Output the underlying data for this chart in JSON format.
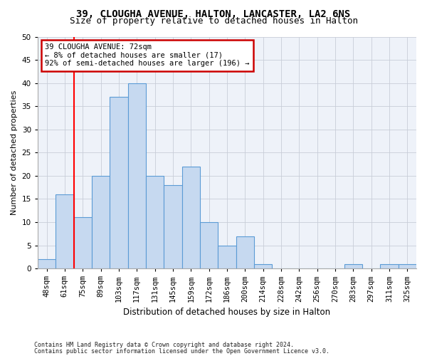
{
  "title1": "39, CLOUGHA AVENUE, HALTON, LANCASTER, LA2 6NS",
  "title2": "Size of property relative to detached houses in Halton",
  "xlabel": "Distribution of detached houses by size in Halton",
  "ylabel": "Number of detached properties",
  "categories": [
    "48sqm",
    "61sqm",
    "75sqm",
    "89sqm",
    "103sqm",
    "117sqm",
    "131sqm",
    "145sqm",
    "159sqm",
    "172sqm",
    "186sqm",
    "200sqm",
    "214sqm",
    "228sqm",
    "242sqm",
    "256sqm",
    "270sqm",
    "283sqm",
    "297sqm",
    "311sqm",
    "325sqm"
  ],
  "values": [
    2,
    16,
    11,
    20,
    37,
    40,
    20,
    18,
    22,
    10,
    5,
    7,
    1,
    0,
    0,
    0,
    0,
    1,
    0,
    1,
    1
  ],
  "bar_color": "#c6d9f0",
  "bar_edge_color": "#5b9bd5",
  "red_line_x": 1.5,
  "annotation_title": "39 CLOUGHA AVENUE: 72sqm",
  "annotation_line1": "← 8% of detached houses are smaller (17)",
  "annotation_line2": "92% of semi-detached houses are larger (196) →",
  "annotation_box_color": "#ffffff",
  "annotation_box_edge": "#cc0000",
  "ylim": [
    0,
    50
  ],
  "yticks": [
    0,
    5,
    10,
    15,
    20,
    25,
    30,
    35,
    40,
    45,
    50
  ],
  "footnote1": "Contains HM Land Registry data © Crown copyright and database right 2024.",
  "footnote2": "Contains public sector information licensed under the Open Government Licence v3.0.",
  "background_color": "#ffffff",
  "plot_bg_color": "#eef2f9",
  "grid_color": "#c8cdd8",
  "title1_fontsize": 10,
  "title2_fontsize": 9,
  "xlabel_fontsize": 8.5,
  "ylabel_fontsize": 8,
  "tick_fontsize": 7.5,
  "annot_fontsize": 7.5,
  "footnote_fontsize": 6
}
